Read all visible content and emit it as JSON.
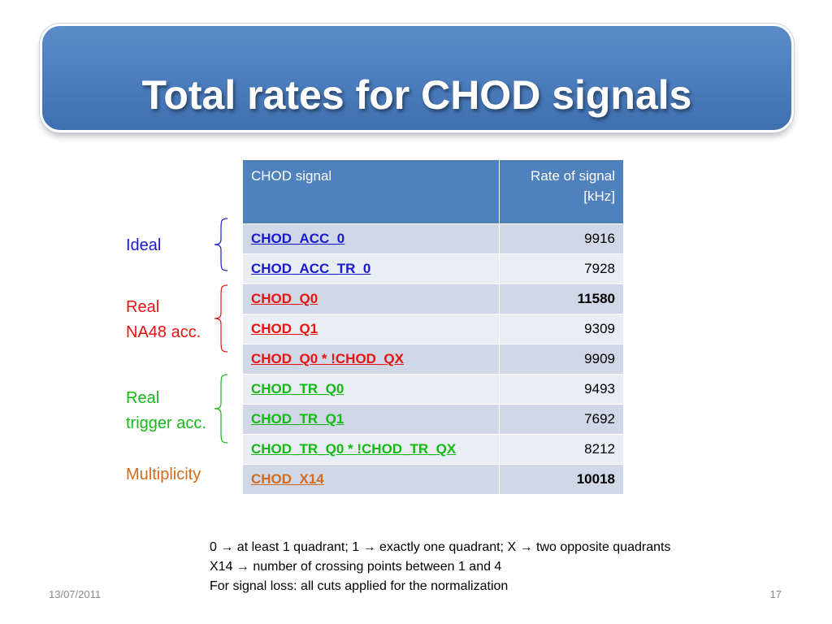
{
  "slide": {
    "title": "Total rates for CHOD signals"
  },
  "table": {
    "headers": [
      "CHOD signal",
      "Rate of signal\n[kHz]"
    ],
    "rows": [
      {
        "signal": "CHOD_ACC_0",
        "rate": "9916",
        "color": "#1a1acd",
        "bold_rate": false
      },
      {
        "signal": "CHOD_ACC_TR_0",
        "rate": "7928",
        "color": "#1a1acd",
        "bold_rate": false
      },
      {
        "signal": "CHOD_Q0",
        "rate": "11580",
        "color": "#e8120e",
        "bold_rate": true
      },
      {
        "signal": "CHOD_Q1",
        "rate": "9309",
        "color": "#e8120e",
        "bold_rate": false
      },
      {
        "signal": "CHOD_Q0 * !CHOD_QX",
        "rate": "9909",
        "color": "#e8120e",
        "bold_rate": false
      },
      {
        "signal": "CHOD_TR_Q0",
        "rate": "9493",
        "color": "#14b914",
        "bold_rate": false
      },
      {
        "signal": "CHOD_TR_Q1",
        "rate": "7692",
        "color": "#14b914",
        "bold_rate": false
      },
      {
        "signal": "CHOD_TR_Q0 * !CHOD_TR_QX",
        "rate": "8212",
        "color": "#14b914",
        "bold_rate": false
      },
      {
        "signal": "CHOD_X14",
        "rate": "10018",
        "color": "#d26b1e",
        "bold_rate": true
      }
    ]
  },
  "groups": [
    {
      "lines": [
        "Ideal"
      ],
      "color": "#1a1acd"
    },
    {
      "lines": [
        "Real",
        "NA48 acc."
      ],
      "color": "#e8120e"
    },
    {
      "lines": [
        "Real",
        "trigger acc."
      ],
      "color": "#14b914"
    },
    {
      "lines": [
        "Multiplicity"
      ],
      "color": "#d26b1e"
    }
  ],
  "footnote": [
    "0 → at least 1 quadrant; 1 → exactly one quadrant; X → two opposite quadrants",
    "X14 → number of crossing points between 1 and 4",
    "For signal loss: all cuts applied for the normalization"
  ],
  "footer": {
    "date": "13/07/2011",
    "page": "17"
  }
}
